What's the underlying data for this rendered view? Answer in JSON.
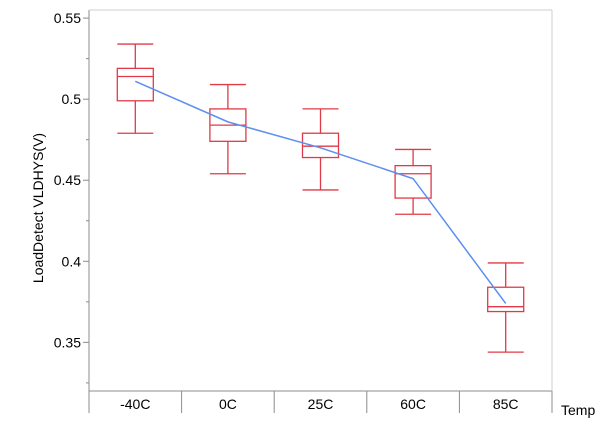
{
  "colors": {
    "box": "#e03a48",
    "mean_line": "#5b8ff0",
    "axis": "#8c8c8c",
    "text": "#000000"
  },
  "chart_data": {
    "type": "boxplot",
    "xlabel": "Temp",
    "ylabel": "LoadDetect VLDHYS(V)",
    "ylim": [
      0.32,
      0.555
    ],
    "y_ticks": [
      0.35,
      0.4,
      0.45,
      0.5,
      0.55
    ],
    "y_tick_labels": [
      "0.35",
      "0.4",
      "0.45",
      "0.5",
      "0.55"
    ],
    "grid": false,
    "categories": [
      "-40C",
      "0C",
      "25C",
      "60C",
      "85C"
    ],
    "boxes": [
      {
        "category": "-40C",
        "whisker_low": 0.479,
        "q1": 0.499,
        "median": 0.514,
        "q3": 0.519,
        "whisker_high": 0.534
      },
      {
        "category": "0C",
        "whisker_low": 0.454,
        "q1": 0.474,
        "median": 0.484,
        "q3": 0.494,
        "whisker_high": 0.509
      },
      {
        "category": "25C",
        "whisker_low": 0.444,
        "q1": 0.464,
        "median": 0.471,
        "q3": 0.479,
        "whisker_high": 0.494
      },
      {
        "category": "60C",
        "whisker_low": 0.429,
        "q1": 0.439,
        "median": 0.454,
        "q3": 0.459,
        "whisker_high": 0.469
      },
      {
        "category": "85C",
        "whisker_low": 0.344,
        "q1": 0.369,
        "median": 0.372,
        "q3": 0.384,
        "whisker_high": 0.399
      }
    ],
    "mean_line": {
      "x": [
        "-40C",
        "0C",
        "25C",
        "60C",
        "85C"
      ],
      "y": [
        0.511,
        0.486,
        0.47,
        0.451,
        0.374
      ]
    }
  }
}
